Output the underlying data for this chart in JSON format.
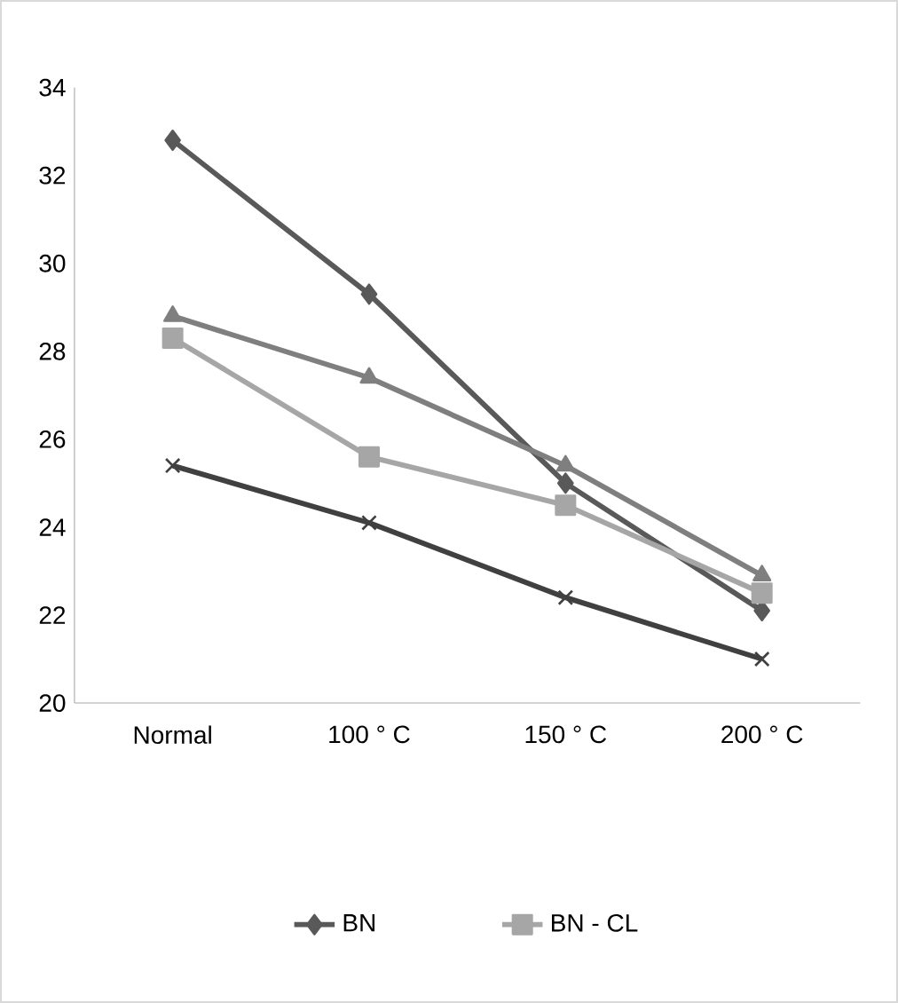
{
  "chart_data": {
    "type": "line",
    "categories": [
      "Normal",
      "100 ° C",
      "150 ° C",
      "200 ° C"
    ],
    "series": [
      {
        "name": "BN",
        "color": "#595959",
        "marker": "diamond",
        "values": [
          32.8,
          29.3,
          25.0,
          22.1
        ]
      },
      {
        "color": "#7f7f7f",
        "marker": "triangle",
        "values": [
          28.8,
          27.4,
          25.4,
          22.9
        ]
      },
      {
        "name": "BN - CL",
        "color": "#a6a6a6",
        "marker": "square",
        "values": [
          28.3,
          25.6,
          24.5,
          22.5
        ]
      },
      {
        "color": "#404040",
        "marker": "cross",
        "values": [
          25.4,
          24.1,
          22.4,
          21.0
        ]
      }
    ],
    "ylim": [
      20,
      34
    ],
    "yticks": [
      20,
      22,
      24,
      26,
      28,
      30,
      32,
      34
    ],
    "grid": false,
    "legend": "bottom",
    "line_style": "solid"
  }
}
